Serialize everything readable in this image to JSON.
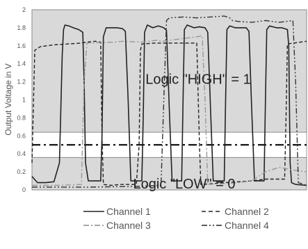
{
  "chart_data": {
    "type": "line",
    "title": "",
    "xlabel": "",
    "ylabel": "Output Voltage in V",
    "ylim": [
      0,
      2
    ],
    "yticks": [
      "0",
      "0.2",
      "0.4",
      "0.6",
      "0.8",
      "1",
      "1.2",
      "1.4",
      "1.6",
      "1.8",
      "2"
    ],
    "grid": false,
    "legend_position": "bottom",
    "annotations": [
      {
        "text": "Logic \"HIGH\" = 1",
        "y": 1.23
      },
      {
        "text": "Logic \"LOW\" = 0",
        "y": 0.07
      }
    ],
    "bands": [
      {
        "name": "high-region",
        "from": 0.64,
        "to": 2.0
      },
      {
        "name": "low-region",
        "from": 0.0,
        "to": 0.36
      }
    ],
    "threshold": 0.5,
    "series": [
      {
        "name": "Channel 1",
        "style": "solid",
        "x": [
          0,
          0.02,
          0.05,
          0.08,
          0.1,
          0.11,
          0.115,
          0.12,
          0.135,
          0.15,
          0.17,
          0.185,
          0.19,
          0.195,
          0.205,
          0.25,
          0.255,
          0.26,
          0.27,
          0.29,
          0.31,
          0.33,
          0.34,
          0.35,
          0.36,
          0.4,
          0.405,
          0.41,
          0.42,
          0.44,
          0.46,
          0.48,
          0.49,
          0.5,
          0.51,
          0.545,
          0.55,
          0.555,
          0.565,
          0.59,
          0.61,
          0.63,
          0.64,
          0.65,
          0.66,
          0.7,
          0.705,
          0.71,
          0.72,
          0.74,
          0.76,
          0.78,
          0.79,
          0.8,
          0.81,
          0.845,
          0.85,
          0.855,
          0.865,
          0.89,
          0.91,
          0.93,
          0.935,
          0.94,
          0.945,
          0.96,
          1.0
        ],
        "y": [
          0.15,
          0.08,
          0.08,
          0.09,
          0.3,
          1.5,
          1.78,
          1.83,
          1.82,
          1.8,
          1.78,
          1.75,
          1.2,
          0.3,
          0.1,
          0.1,
          0.6,
          1.7,
          1.8,
          1.8,
          1.8,
          1.79,
          1.76,
          1.0,
          0.1,
          0.1,
          0.8,
          1.75,
          1.83,
          1.8,
          1.82,
          1.8,
          1.77,
          0.9,
          0.1,
          0.1,
          1.0,
          1.78,
          1.83,
          1.8,
          1.81,
          1.8,
          1.75,
          0.9,
          0.1,
          0.1,
          1.0,
          1.78,
          1.82,
          1.8,
          1.8,
          1.8,
          1.76,
          0.9,
          0.1,
          0.1,
          1.0,
          1.78,
          1.82,
          1.8,
          1.8,
          1.78,
          1.6,
          0.3,
          0.08,
          0.06,
          0.05
        ]
      },
      {
        "name": "Channel 2",
        "style": "dashed",
        "x": [
          0,
          0.01,
          0.03,
          0.08,
          0.18,
          0.2,
          0.23,
          0.25,
          0.255,
          0.26,
          0.29,
          0.32,
          0.38,
          0.39,
          0.395,
          0.4,
          0.45,
          0.6,
          0.61,
          0.615,
          0.62,
          0.66,
          0.7,
          0.8,
          0.85,
          0.9,
          0.92,
          0.925,
          0.93,
          1.0
        ],
        "y": [
          0.3,
          1.55,
          1.59,
          1.61,
          1.63,
          1.64,
          1.65,
          1.64,
          0.6,
          0.06,
          0.05,
          0.06,
          0.06,
          0.5,
          1.55,
          1.62,
          1.63,
          1.63,
          0.5,
          0.06,
          0.06,
          0.07,
          0.08,
          0.1,
          0.12,
          0.12,
          0.12,
          0.8,
          1.62,
          1.65
        ]
      },
      {
        "name": "Channel 3",
        "style": "dashdot",
        "x": [
          0,
          0.1,
          0.18,
          0.19,
          0.2,
          0.3,
          0.33,
          0.4,
          0.45,
          0.48,
          0.5,
          0.55,
          0.6,
          0.62,
          0.63,
          0.64,
          0.7,
          0.75,
          0.8,
          0.85,
          0.9,
          0.95,
          1.0
        ],
        "y": [
          0.05,
          0.05,
          0.06,
          1.2,
          1.63,
          1.64,
          1.65,
          1.64,
          1.66,
          1.65,
          1.66,
          1.68,
          1.7,
          1.71,
          1.0,
          0.06,
          0.07,
          0.08,
          0.1,
          0.2,
          0.25,
          0.22,
          0.2
        ]
      },
      {
        "name": "Channel 4",
        "style": "dashdotdot",
        "x": [
          0,
          0.2,
          0.4,
          0.47,
          0.48,
          0.49,
          0.5,
          0.55,
          0.6,
          0.65,
          0.7,
          0.72,
          0.73,
          0.75,
          0.8,
          0.85,
          0.9,
          0.95,
          0.96,
          0.97,
          1.0
        ],
        "y": [
          0.03,
          0.03,
          0.04,
          0.05,
          1.0,
          1.88,
          1.91,
          1.92,
          1.91,
          1.92,
          1.93,
          1.91,
          1.88,
          1.87,
          1.86,
          1.88,
          1.86,
          1.88,
          1.2,
          0.08,
          0.05
        ]
      }
    ]
  }
}
